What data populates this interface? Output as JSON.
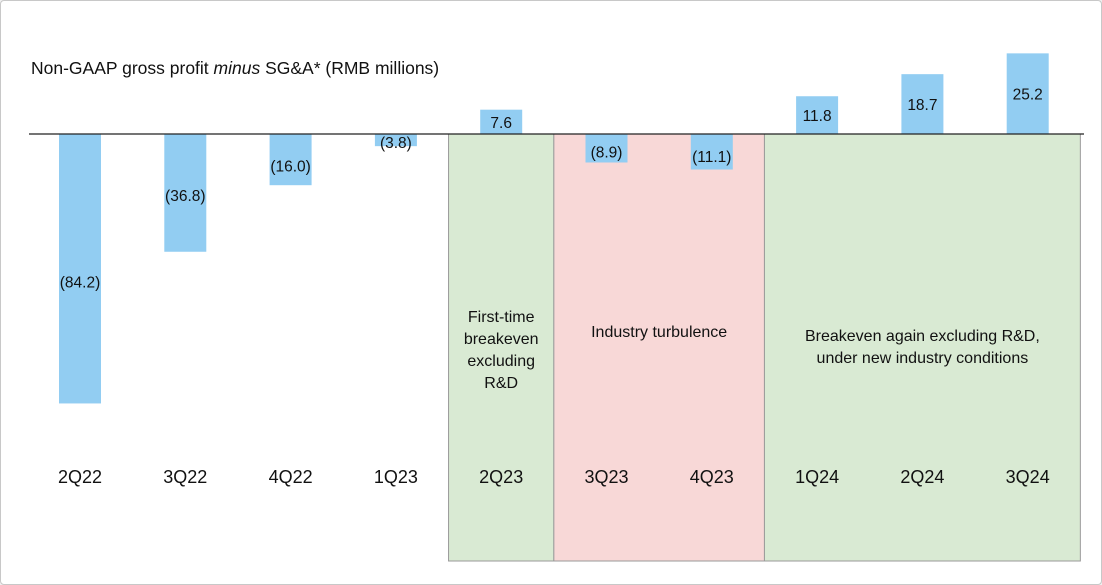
{
  "title": {
    "prefix": "Non-GAAP gross profit ",
    "italic": "minus",
    "suffix": " SG&A* (RMB millions)"
  },
  "colors": {
    "bar": "#92cdf2",
    "band_green": "#d9ead3",
    "band_red": "#f8d8d7",
    "band_border": "#9a9a9a",
    "axis": "#222222"
  },
  "chart_data": {
    "type": "bar",
    "title": "Non-GAAP gross profit minus SG&A* (RMB millions)",
    "categories": [
      "2Q22",
      "3Q22",
      "4Q22",
      "1Q23",
      "2Q23",
      "3Q23",
      "4Q23",
      "1Q24",
      "2Q24",
      "3Q24"
    ],
    "values": [
      -84.2,
      -36.8,
      -16.0,
      -3.8,
      7.6,
      -8.9,
      -11.1,
      11.8,
      18.7,
      25.2
    ],
    "value_labels": [
      "(84.2)",
      "(36.8)",
      "(16.0)",
      "(3.8)",
      "7.6",
      "(8.9)",
      "(11.1)",
      "11.8",
      "18.7",
      "25.2"
    ],
    "xlabel": "",
    "ylabel": "",
    "ylim": [
      -90,
      30
    ],
    "grid": false,
    "annotations": [
      {
        "lines": [
          "First-time",
          "breakeven",
          "excluding",
          "R&D"
        ],
        "from": "2Q23",
        "to": "2Q23",
        "color": "green"
      },
      {
        "lines": [
          "Industry turbulence"
        ],
        "from": "3Q23",
        "to": "4Q23",
        "color": "red"
      },
      {
        "lines": [
          "Breakeven again excluding R&D,",
          "under new industry conditions"
        ],
        "from": "1Q24",
        "to": "3Q24",
        "color": "green"
      }
    ]
  }
}
